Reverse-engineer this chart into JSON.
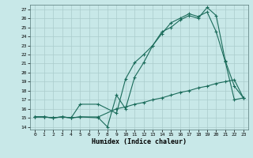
{
  "xlabel": "Humidex (Indice chaleur)",
  "bg_color": "#c8e8e8",
  "grid_color": "#aacccc",
  "line_color": "#1a6b5a",
  "xlim": [
    -0.5,
    23.5
  ],
  "ylim": [
    13.7,
    27.5
  ],
  "yticks": [
    14,
    15,
    16,
    17,
    18,
    19,
    20,
    21,
    22,
    23,
    24,
    25,
    26,
    27
  ],
  "xticks": [
    0,
    1,
    2,
    3,
    4,
    5,
    6,
    7,
    8,
    9,
    10,
    11,
    12,
    13,
    14,
    15,
    16,
    17,
    18,
    19,
    20,
    21,
    22,
    23
  ],
  "line1_x": [
    0,
    1,
    2,
    3,
    4,
    5,
    7,
    8,
    9,
    10,
    11,
    12,
    13,
    14,
    15,
    16,
    17,
    18,
    19,
    20,
    21,
    22,
    23
  ],
  "line1_y": [
    15.1,
    15.1,
    15.0,
    15.1,
    15.0,
    15.1,
    15.0,
    14.0,
    17.5,
    16.0,
    19.5,
    21.1,
    23.0,
    24.5,
    25.0,
    25.8,
    26.3,
    26.0,
    27.2,
    26.3,
    21.3,
    18.5,
    17.2
  ],
  "line2_x": [
    0,
    1,
    2,
    3,
    4,
    5,
    7,
    9,
    10,
    11,
    12,
    13,
    14,
    15,
    16,
    17,
    18,
    19,
    20,
    21,
    22,
    23
  ],
  "line2_y": [
    15.1,
    15.1,
    15.0,
    15.1,
    15.0,
    16.5,
    16.5,
    15.5,
    19.3,
    21.1,
    22.0,
    23.0,
    24.3,
    25.5,
    26.0,
    26.5,
    26.2,
    26.7,
    24.5,
    21.2,
    17.0,
    17.2
  ],
  "line3_x": [
    0,
    1,
    2,
    3,
    4,
    5,
    7,
    9,
    10,
    11,
    12,
    13,
    14,
    15,
    16,
    17,
    18,
    19,
    20,
    21,
    22,
    23
  ],
  "line3_y": [
    15.1,
    15.1,
    15.0,
    15.1,
    15.0,
    15.1,
    15.1,
    16.0,
    16.2,
    16.5,
    16.7,
    17.0,
    17.2,
    17.5,
    17.8,
    18.0,
    18.3,
    18.5,
    18.8,
    19.0,
    19.2,
    17.2
  ]
}
